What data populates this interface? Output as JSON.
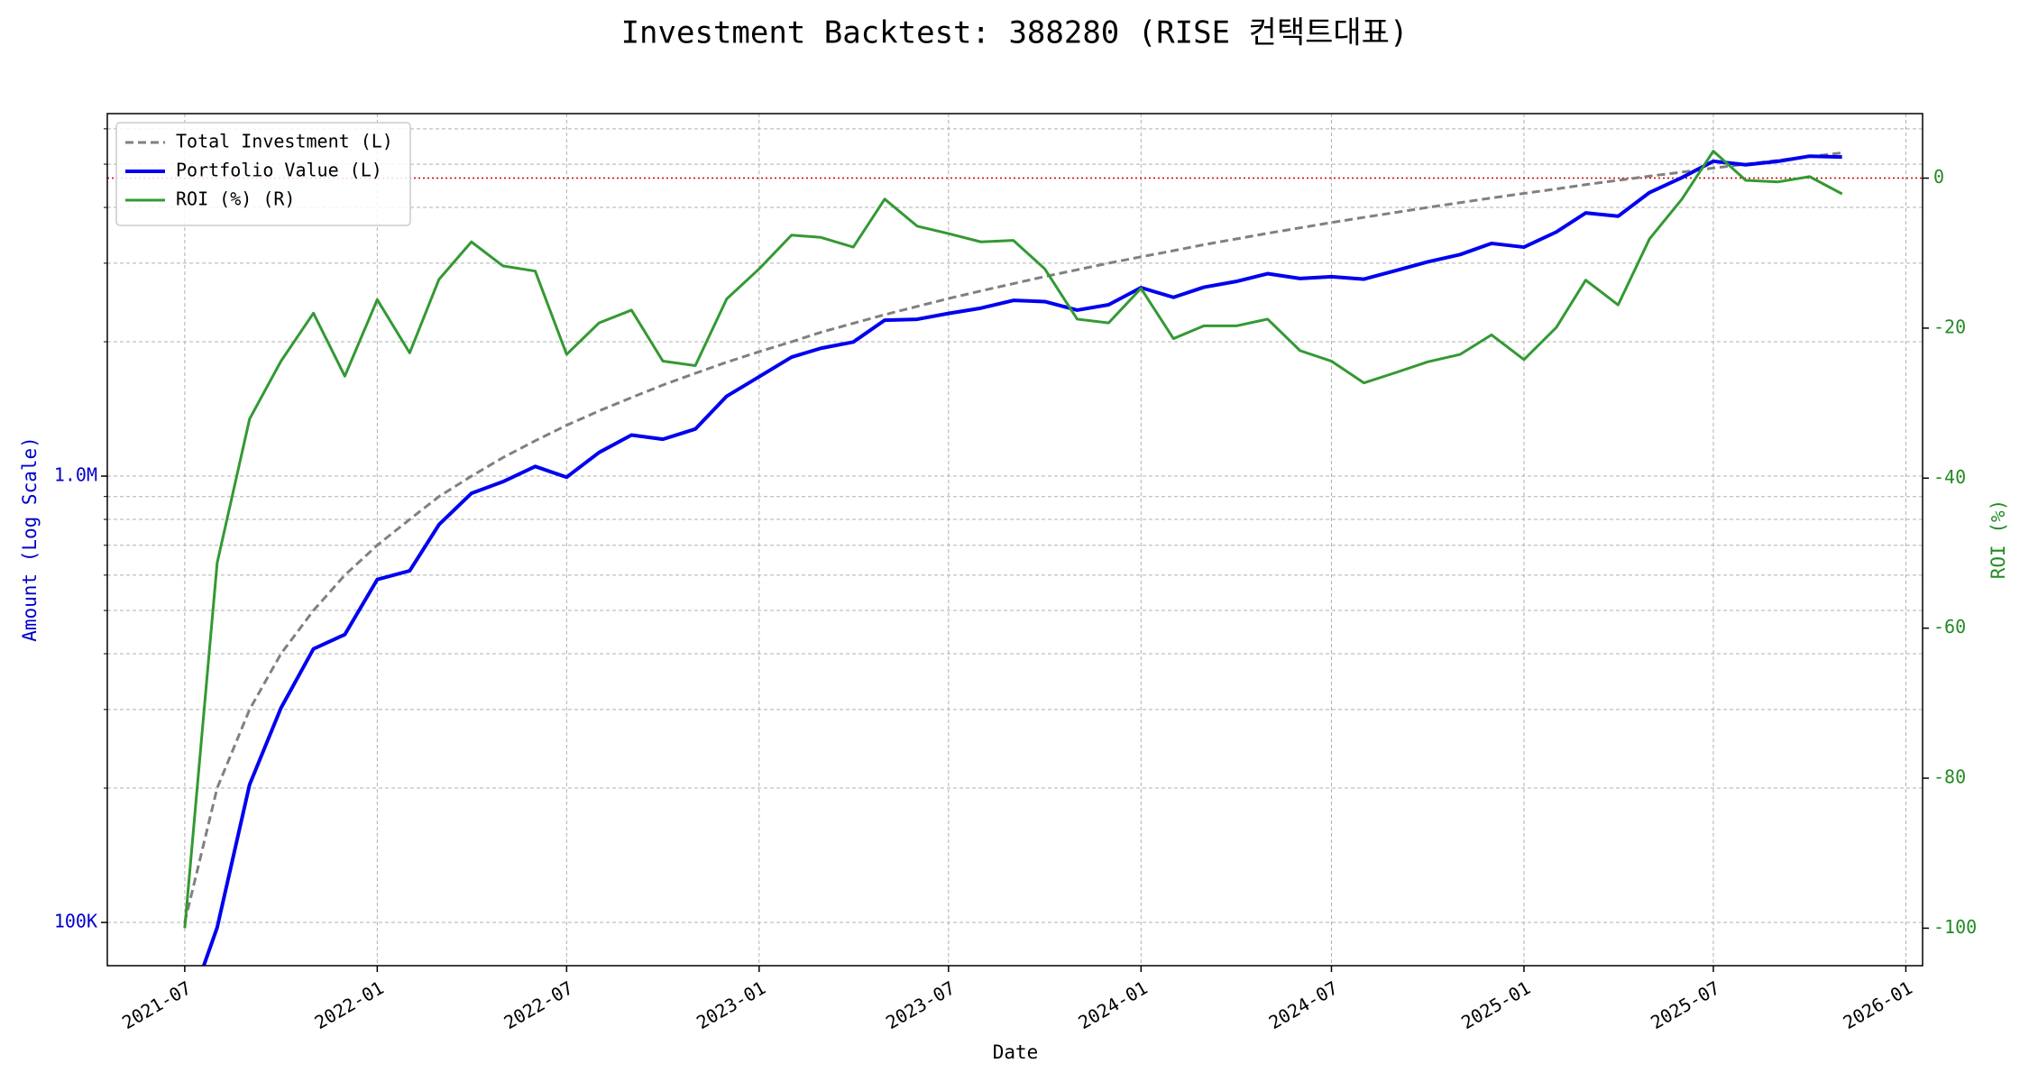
{
  "chart_data": {
    "type": "line",
    "title": "Investment Backtest: 388280 (RISE 컨택트대표)",
    "xlabel": "Date",
    "ylabel": "Amount (Log Scale)",
    "y2label": "ROI (%)",
    "ylabel_color": "#0000cc",
    "y2label_color": "#228b22",
    "x": [
      "2021-07",
      "2021-08",
      "2021-09",
      "2021-10",
      "2021-11",
      "2021-12",
      "2022-01",
      "2022-02",
      "2022-03",
      "2022-04",
      "2022-05",
      "2022-06",
      "2022-07",
      "2022-08",
      "2022-09",
      "2022-10",
      "2022-11",
      "2022-12",
      "2023-01",
      "2023-02",
      "2023-03",
      "2023-04",
      "2023-05",
      "2023-06",
      "2023-07",
      "2023-08",
      "2023-09",
      "2023-10",
      "2023-11",
      "2023-12",
      "2024-01",
      "2024-02",
      "2024-03",
      "2024-04",
      "2024-05",
      "2024-06",
      "2024-07",
      "2024-08",
      "2024-09",
      "2024-10",
      "2024-11",
      "2024-12",
      "2025-01",
      "2025-02",
      "2025-03",
      "2025-04",
      "2025-05",
      "2025-06",
      "2025-07",
      "2025-08",
      "2025-09",
      "2025-10",
      "2025-11"
    ],
    "series": [
      {
        "name": "Total Investment (L)",
        "color": "#808080",
        "style": "dashed",
        "width": 3,
        "axis": "y",
        "values": [
          100000,
          200000,
          300000,
          400000,
          500000,
          600000,
          700000,
          800000,
          900000,
          1000000,
          1100000,
          1200000,
          1300000,
          1400000,
          1500000,
          1600000,
          1700000,
          1800000,
          1900000,
          2000000,
          2100000,
          2200000,
          2300000,
          2400000,
          2500000,
          2600000,
          2700000,
          2800000,
          2900000,
          3000000,
          3100000,
          3200000,
          3300000,
          3400000,
          3500000,
          3600000,
          3700000,
          3800000,
          3900000,
          4000000,
          4100000,
          4200000,
          4300000,
          4400000,
          4500000,
          4600000,
          4700000,
          4800000,
          4900000,
          5000000,
          5100000,
          5200000,
          5300000
        ]
      },
      {
        "name": "Portfolio Value (L)",
        "color": "#0000ee",
        "style": "solid",
        "width": 4,
        "axis": "y",
        "values": [
          0,
          97400,
          203700,
          302400,
          410000,
          441600,
          586600,
          613600,
          778500,
          915000,
          971300,
          1051200,
          994500,
          1129800,
          1236000,
          1209600,
          1275000,
          1510200,
          1670100,
          1848000,
          1934100,
          1997600,
          2235600,
          2246400,
          2315000,
          2379000,
          2475900,
          2461200,
          2354800,
          2421000,
          2644300,
          2515200,
          2649900,
          2730200,
          2842000,
          2772000,
          2797200,
          2762600,
          2889900,
          3020000,
          3136500,
          3322200,
          3259400,
          3524400,
          3888000,
          3822600,
          4319300,
          4665600,
          5076400,
          4985000,
          5074500,
          5210400,
          5188700
        ]
      },
      {
        "name": "ROI (%) (R)",
        "color": "#339933",
        "style": "solid",
        "width": 3,
        "axis": "y2",
        "values": [
          -100,
          -51.3,
          -32.1,
          -24.4,
          -18.0,
          -26.4,
          -16.2,
          -23.3,
          -13.5,
          -8.5,
          -11.7,
          -12.4,
          -23.5,
          -19.3,
          -17.6,
          -24.4,
          -25.0,
          -16.1,
          -12.1,
          -7.6,
          -7.9,
          -9.2,
          -2.8,
          -6.4,
          -7.4,
          -8.5,
          -8.3,
          -12.1,
          -18.8,
          -19.3,
          -14.7,
          -21.4,
          -19.7,
          -19.7,
          -18.8,
          -23.0,
          -24.4,
          -27.3,
          -25.9,
          -24.5,
          -23.5,
          -20.9,
          -24.2,
          -19.9,
          -13.6,
          -16.9,
          -8.1,
          -2.8,
          3.6,
          -0.3,
          -0.5,
          0.2,
          -2.1
        ]
      }
    ],
    "xlim": [
      "2021-04-18",
      "2026-01-17"
    ],
    "xticks": [
      "2021-07",
      "2022-01",
      "2022-07",
      "2023-01",
      "2023-07",
      "2024-01",
      "2024-07",
      "2025-01",
      "2025-07",
      "2026-01"
    ],
    "log_y": true,
    "ylim": [
      80000,
      6490000
    ],
    "yticks": [
      {
        "value": 100000,
        "label": "100K"
      },
      {
        "value": 1000000,
        "label": "1.0M"
      }
    ],
    "y_minor_ticks": [
      200000,
      300000,
      400000,
      500000,
      600000,
      700000,
      800000,
      900000,
      2000000,
      3000000,
      4000000,
      5000000,
      6000000
    ],
    "y2lim": [
      -105,
      8.6
    ],
    "y2ticks": [
      0,
      -20,
      -40,
      -60,
      -80,
      -100
    ],
    "y2_reference_line": {
      "value": 0,
      "color": "#cc0000"
    },
    "grid": true,
    "legend": "upper left"
  }
}
